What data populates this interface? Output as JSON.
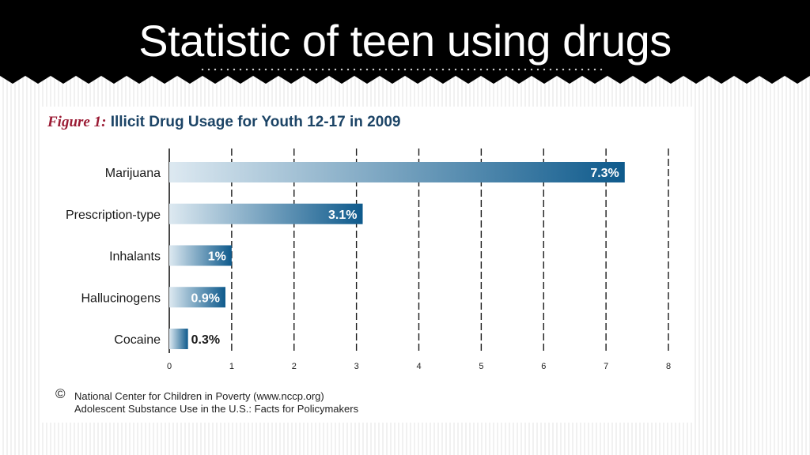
{
  "slide": {
    "title": "Statistic of teen using drugs"
  },
  "figure": {
    "number_label": "Figure 1:",
    "title_text": "Illicit Drug Usage for Youth 12-17 in 2009"
  },
  "chart_data": {
    "type": "bar",
    "orientation": "horizontal",
    "title": "Figure 1: Illicit Drug Usage for Youth 12-17 in 2009",
    "categories": [
      "Marijuana",
      "Prescription-type",
      "Inhalants",
      "Hallucinogens",
      "Cocaine"
    ],
    "values": [
      7.3,
      3.1,
      1,
      0.9,
      0.3
    ],
    "value_labels": [
      "7.3%",
      "3.1%",
      "1%",
      "0.9%",
      "0.3%"
    ],
    "x_ticks": [
      0,
      1,
      2,
      3,
      4,
      5,
      6,
      7,
      8
    ],
    "xlim": [
      0,
      8
    ],
    "xlabel": "",
    "ylabel": "",
    "grid": "vertical dashed",
    "bar_gradient": [
      "#dde9f1",
      "#0e5a8c"
    ],
    "grid_color": "#1a1a1a"
  },
  "source": {
    "icon": "copyright-icon",
    "symbol": "©",
    "line1": "National Center for Children in Poverty (www.nccp.org)",
    "line2": "Adolescent Substance Use in the U.S.: Facts for Policymakers"
  },
  "colors": {
    "header_background": "#000000",
    "title_text": "#ffffff",
    "figure_title": "#1c4466",
    "figure_number": "#9b1b34"
  }
}
